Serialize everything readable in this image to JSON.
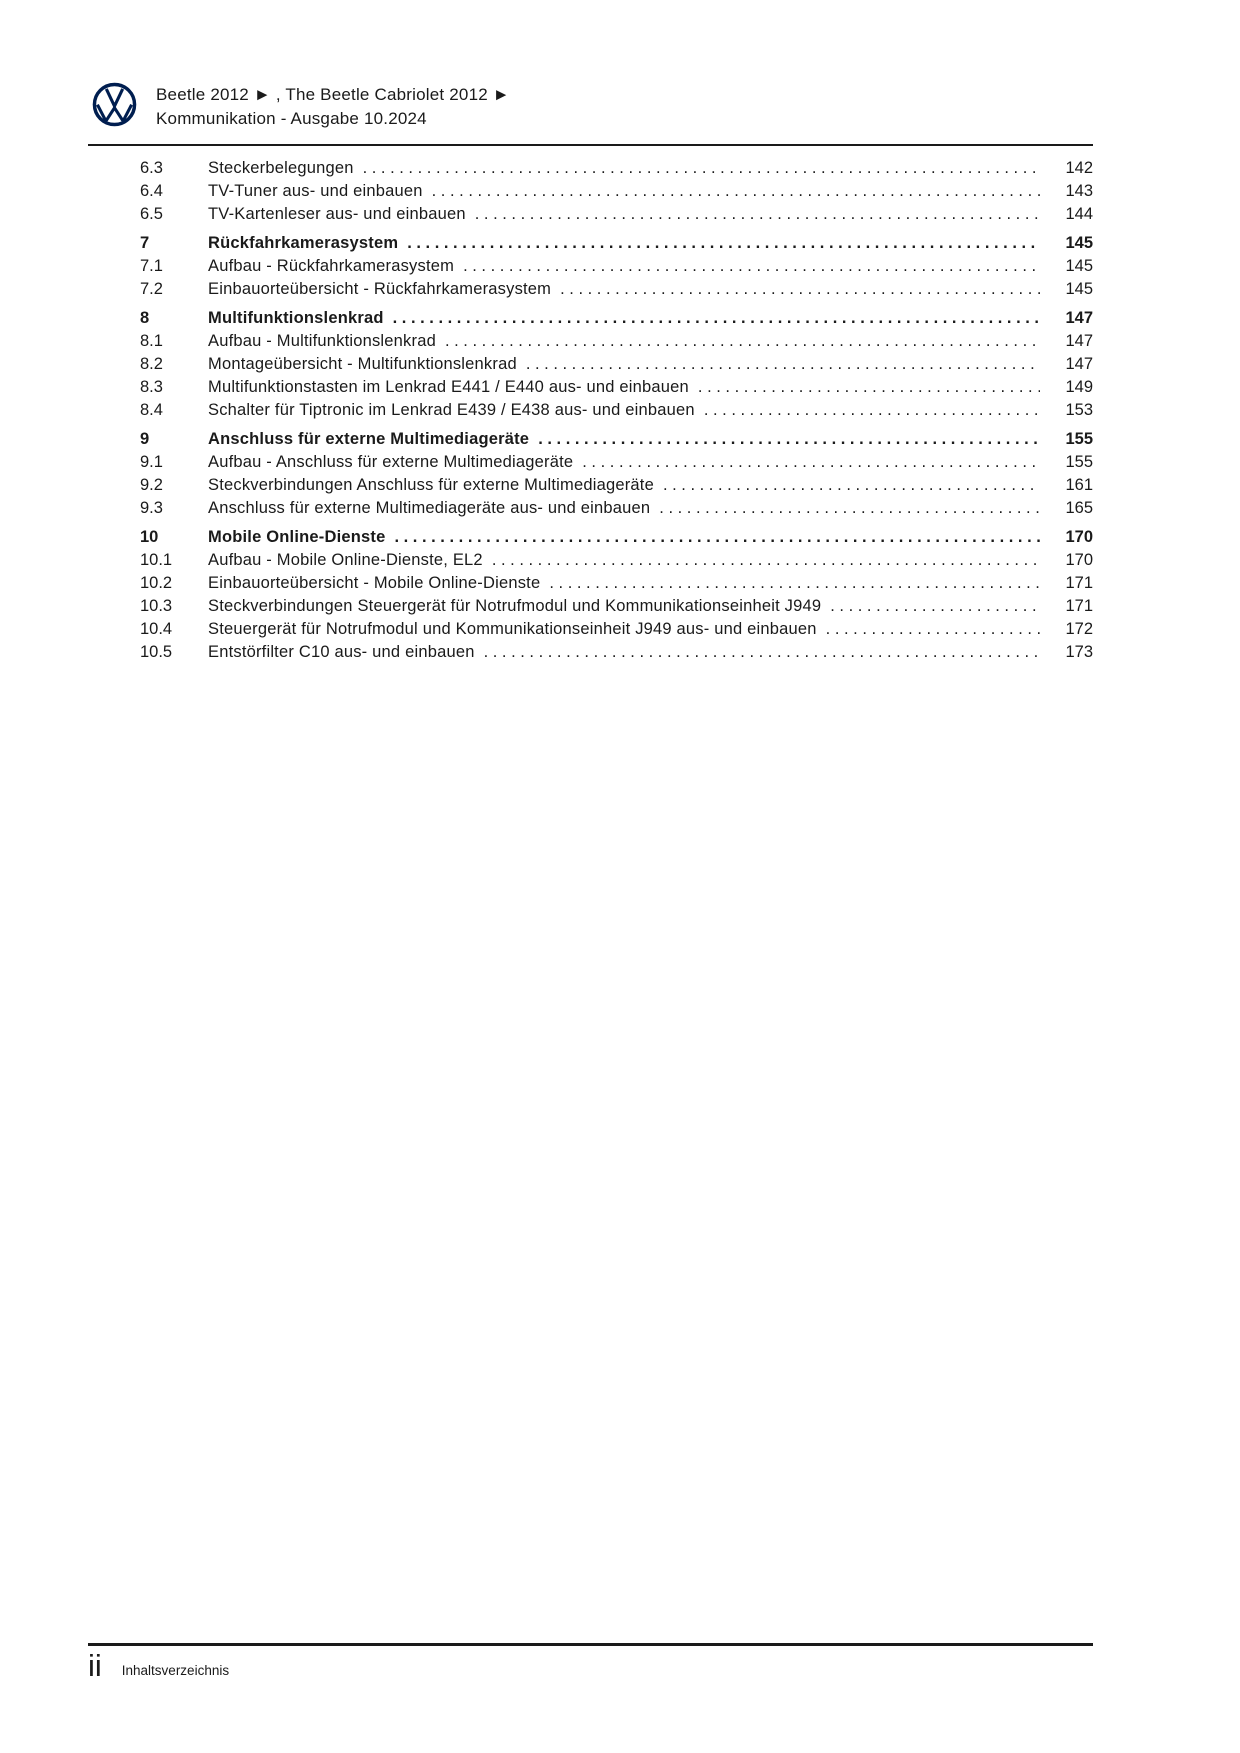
{
  "header": {
    "title_line1": "Beetle 2012 ► , The Beetle Cabriolet 2012 ►",
    "title_line2": "Kommunikation - Ausgabe 10.2024"
  },
  "colors": {
    "logo_blue": "#001e50",
    "text": "#1a1a1a"
  },
  "toc": {
    "entries": [
      {
        "number": "6.3",
        "title": "Steckerbelegungen",
        "page": "142",
        "bold": false
      },
      {
        "number": "6.4",
        "title": "TV-Tuner aus- und einbauen",
        "page": "143",
        "bold": false
      },
      {
        "number": "6.5",
        "title": "TV-Kartenleser aus- und einbauen",
        "page": "144",
        "bold": false
      },
      {
        "number": "7",
        "title": "Rückfahrkamerasystem",
        "page": "145",
        "bold": true
      },
      {
        "number": "7.1",
        "title": "Aufbau - Rückfahrkamerasystem",
        "page": "145",
        "bold": false
      },
      {
        "number": "7.2",
        "title": "Einbauorteübersicht - Rückfahrkamerasystem",
        "page": "145",
        "bold": false
      },
      {
        "number": "8",
        "title": "Multifunktionslenkrad",
        "page": "147",
        "bold": true
      },
      {
        "number": "8.1",
        "title": "Aufbau - Multifunktionslenkrad",
        "page": "147",
        "bold": false
      },
      {
        "number": "8.2",
        "title": "Montageübersicht - Multifunktionslenkrad",
        "page": "147",
        "bold": false
      },
      {
        "number": "8.3",
        "title": "Multifunktionstasten im Lenkrad E441 / E440 aus- und einbauen",
        "page": "149",
        "bold": false
      },
      {
        "number": "8.4",
        "title": "Schalter für Tiptronic im Lenkrad E439 / E438 aus- und einbauen",
        "page": "153",
        "bold": false
      },
      {
        "number": "9",
        "title": "Anschluss für externe Multimediageräte",
        "page": "155",
        "bold": true
      },
      {
        "number": "9.1",
        "title": "Aufbau - Anschluss für externe Multimediageräte",
        "page": "155",
        "bold": false
      },
      {
        "number": "9.2",
        "title": "Steckverbindungen Anschluss für externe Multimediageräte",
        "page": "161",
        "bold": false
      },
      {
        "number": "9.3",
        "title": "Anschluss für externe Multimediageräte aus- und einbauen",
        "page": "165",
        "bold": false
      },
      {
        "number": "10",
        "title": "Mobile Online-Dienste",
        "page": "170",
        "bold": true
      },
      {
        "number": "10.1",
        "title": "Aufbau - Mobile Online-Dienste, EL2",
        "page": "170",
        "bold": false
      },
      {
        "number": "10.2",
        "title": "Einbauorteübersicht - Mobile Online-Dienste",
        "page": "171",
        "bold": false
      },
      {
        "number": "10.3",
        "title": "Steckverbindungen Steuergerät für Notrufmodul und Kommunikationseinheit J949",
        "page": "171",
        "bold": false
      },
      {
        "number": "10.4",
        "title": "Steuergerät für Notrufmodul und Kommunikationseinheit J949 aus- und einbauen",
        "page": "172",
        "bold": false
      },
      {
        "number": "10.5",
        "title": "Entstörfilter C10 aus- und einbauen",
        "page": "173",
        "bold": false
      }
    ]
  },
  "footer": {
    "page_number": "ii",
    "label": "Inhaltsverzeichnis"
  }
}
